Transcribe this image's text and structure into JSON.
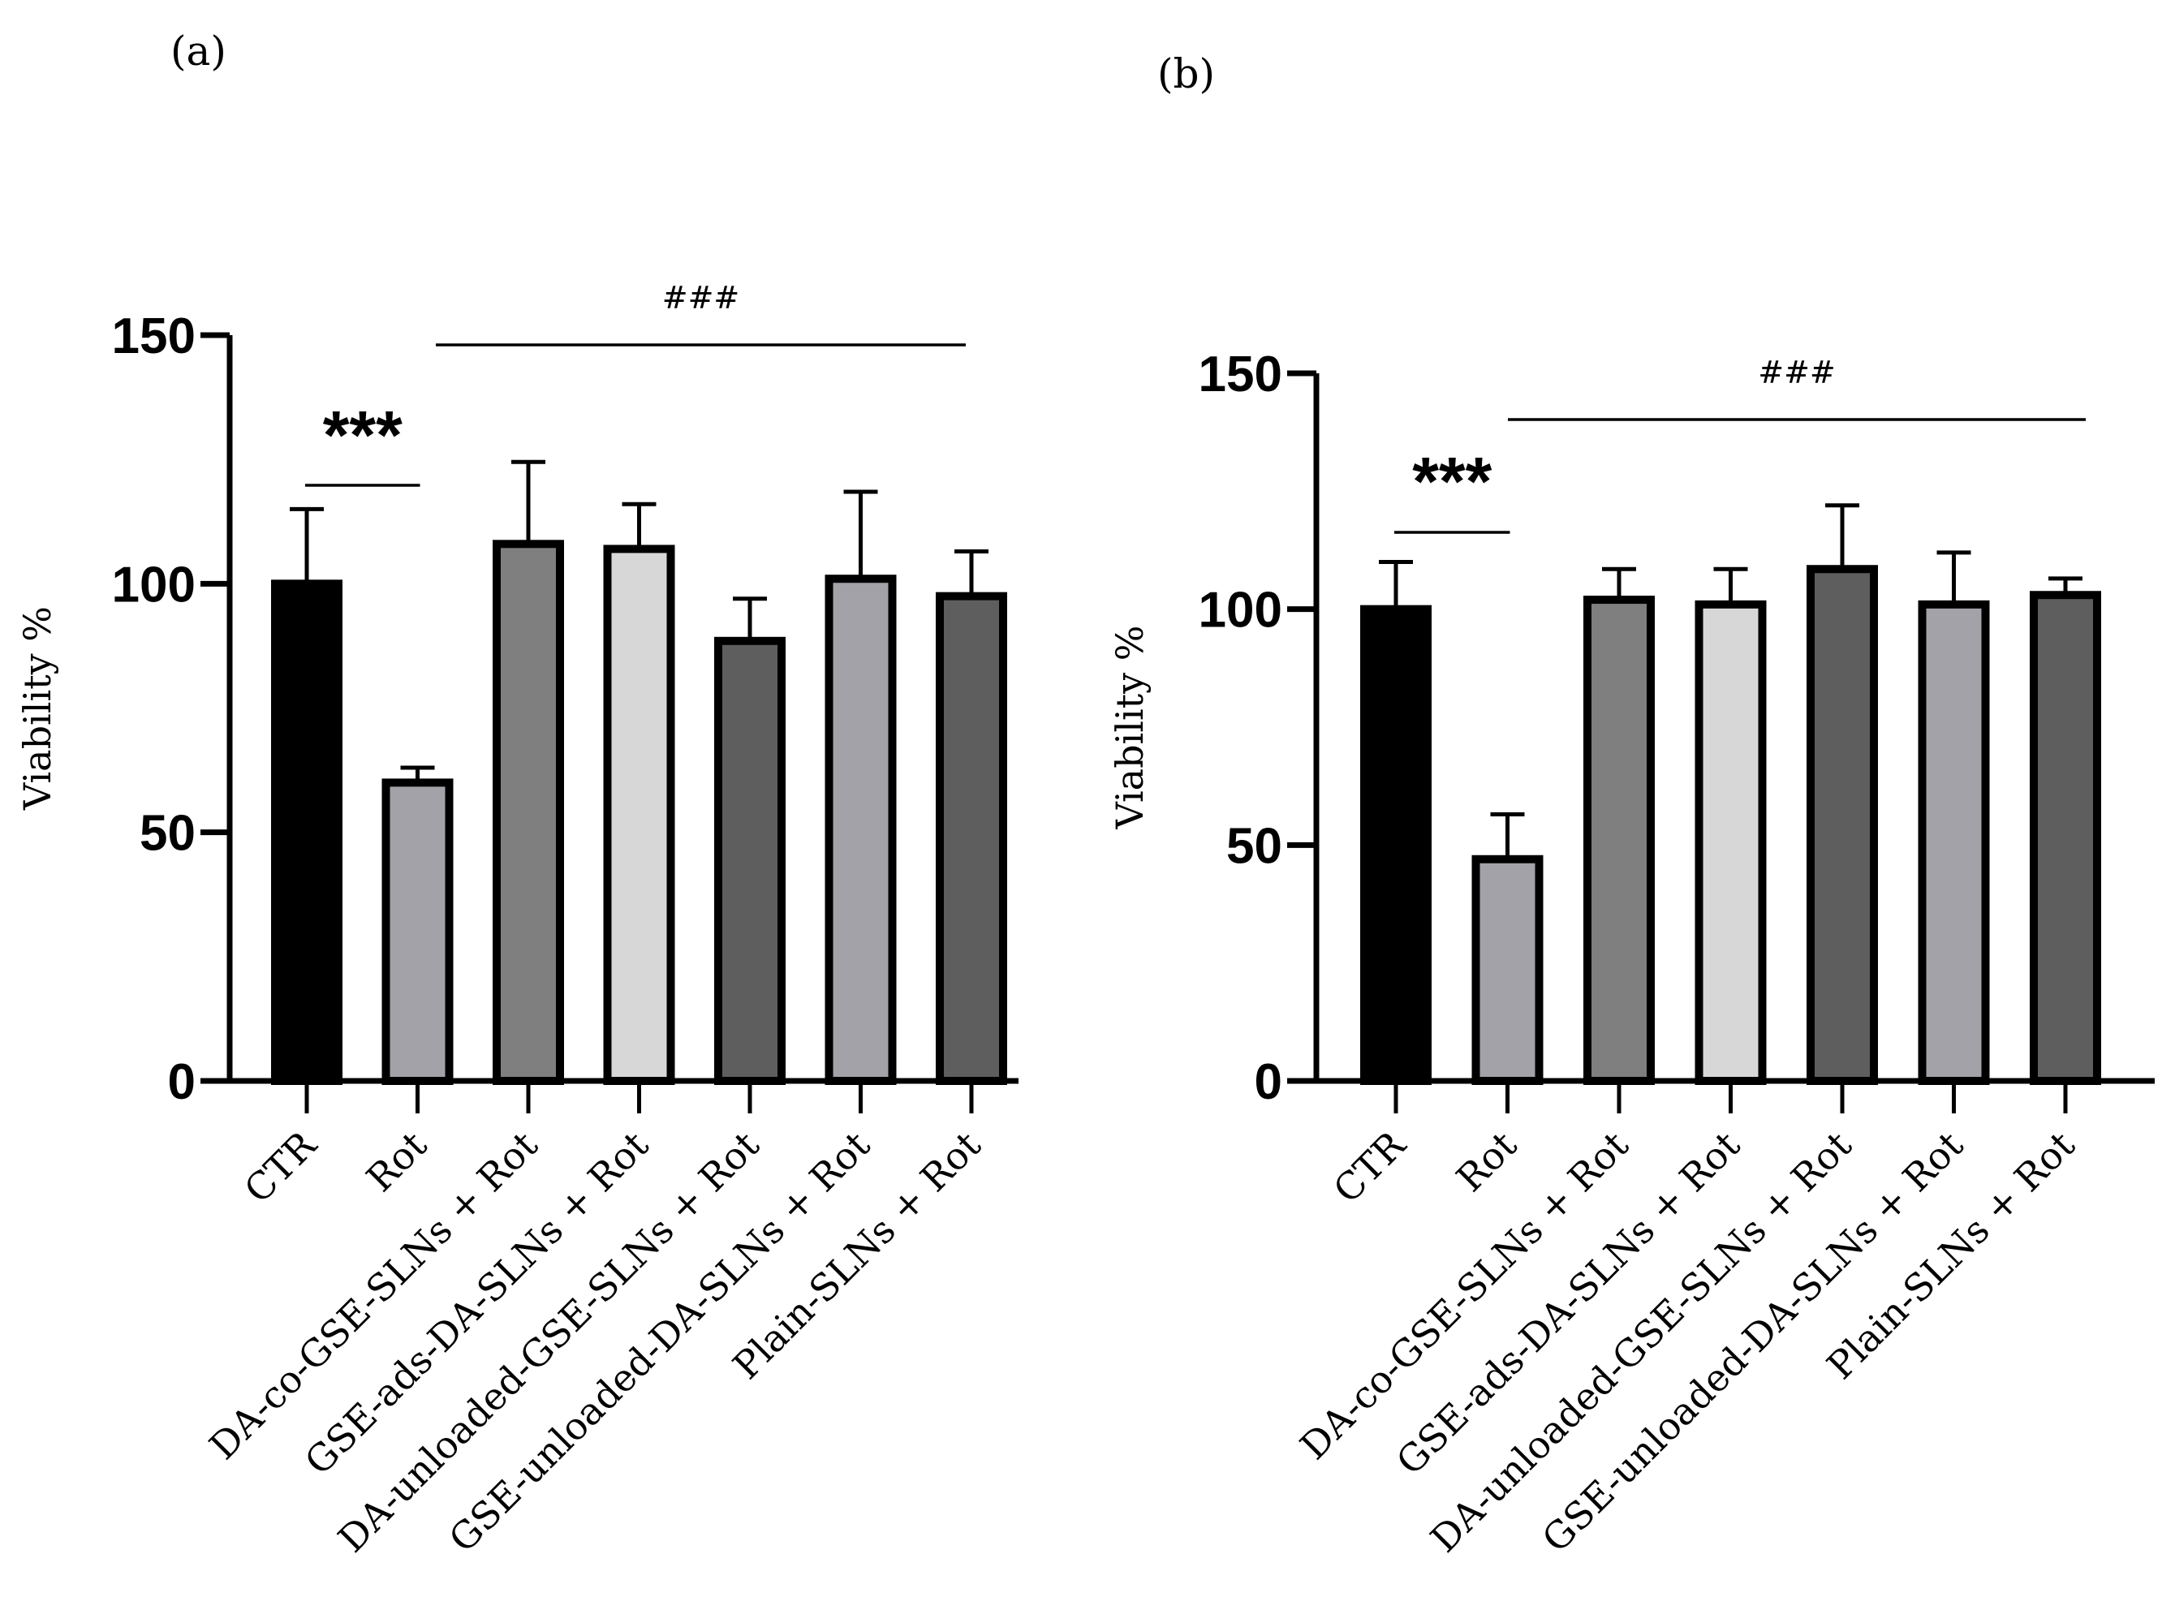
{
  "chart_data": [
    {
      "panel_label": "(a)",
      "type": "bar",
      "ylabel": "Viability %",
      "ylim": [
        0,
        150
      ],
      "yticks": [
        0,
        50,
        100,
        150
      ],
      "categories": [
        "CTR",
        "Rot",
        "DA-co-GSE-SLNs + Rot",
        "GSE-ads-DA-SLNs + Rot",
        "DA-unloaded-GSE-SLNs + Rot",
        "GSE-unloaded-DA-SLNs + Rot",
        "Plain-SLNs + Rot"
      ],
      "values": [
        100,
        60,
        108,
        107,
        88.5,
        101,
        97.5
      ],
      "errors": [
        15,
        3,
        16.5,
        9,
        8.5,
        17.5,
        9
      ],
      "bar_colors": [
        "#000000",
        "#a3a2a8",
        "#7f7f7f",
        "#d7d7d7",
        "#5e5e5e",
        "#a3a2a8",
        "#5e5e5e"
      ],
      "annotations": [
        {
          "text": "***",
          "from": 0,
          "to": 1
        },
        {
          "text": "###",
          "from": 1,
          "to": 6
        }
      ]
    },
    {
      "panel_label": "(b)",
      "type": "bar",
      "ylabel": "Viability %",
      "ylim": [
        0,
        150
      ],
      "yticks": [
        0,
        50,
        100,
        150
      ],
      "categories": [
        "CTR",
        "Rot",
        "DA-co-GSE-SLNs + Rot",
        "GSE-ads-DA-SLNs + Rot",
        "DA-unloaded-GSE-SLNs + Rot",
        "GSE-unloaded-DA-SLNs + Rot",
        "Plain-SLNs + Rot"
      ],
      "values": [
        100,
        47,
        102,
        101,
        108.5,
        101,
        103
      ],
      "errors": [
        10,
        9.5,
        6.5,
        7.5,
        13.5,
        11,
        3.5
      ],
      "bar_colors": [
        "#000000",
        "#a3a2a8",
        "#7f7f7f",
        "#d7d7d7",
        "#5e5e5e",
        "#a3a2a8",
        "#5e5e5e"
      ],
      "annotations": [
        {
          "text": "***",
          "from": 0,
          "to": 1
        },
        {
          "text": "###",
          "from": 1,
          "to": 6
        }
      ]
    }
  ]
}
